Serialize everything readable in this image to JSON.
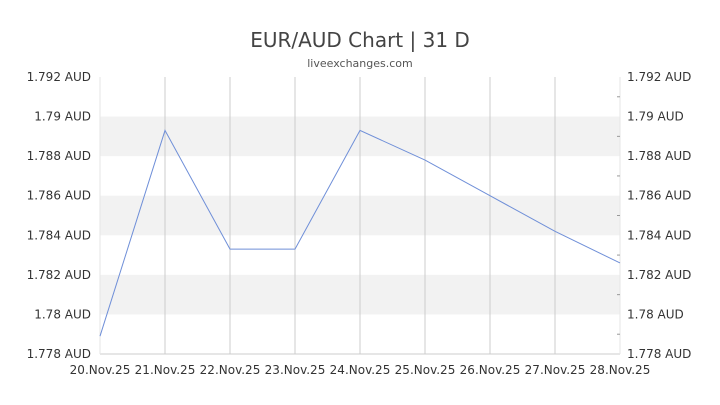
{
  "chart_data": {
    "type": "line",
    "title": "EUR/AUD Chart | 31 D",
    "subtitle": "liveexchanges.com",
    "categories": [
      "20.Nov.25",
      "21.Nov.25",
      "22.Nov.25",
      "23.Nov.25",
      "24.Nov.25",
      "25.Nov.25",
      "26.Nov.25",
      "27.Nov.25",
      "28.Nov.25"
    ],
    "series": [
      {
        "values": [
          1.7789,
          1.7893,
          1.7833,
          1.7833,
          1.7893,
          1.7878,
          1.786,
          1.7842,
          1.7826
        ]
      }
    ],
    "ylim": [
      1.778,
      1.792
    ],
    "yticks": [
      {
        "value": 1.792,
        "label": "1.792 AUD"
      },
      {
        "value": 1.79,
        "label": "1.79 AUD"
      },
      {
        "value": 1.788,
        "label": "1.788 AUD"
      },
      {
        "value": 1.786,
        "label": "1.786 AUD"
      },
      {
        "value": 1.784,
        "label": "1.784 AUD"
      },
      {
        "value": 1.782,
        "label": "1.782 AUD"
      },
      {
        "value": 1.78,
        "label": "1.78 AUD"
      },
      {
        "value": 1.778,
        "label": "1.778 AUD"
      }
    ],
    "grid": true,
    "colors": {
      "line": "#6f8fd8",
      "band": "#f2f2f2",
      "grid": "#cccccc"
    }
  }
}
